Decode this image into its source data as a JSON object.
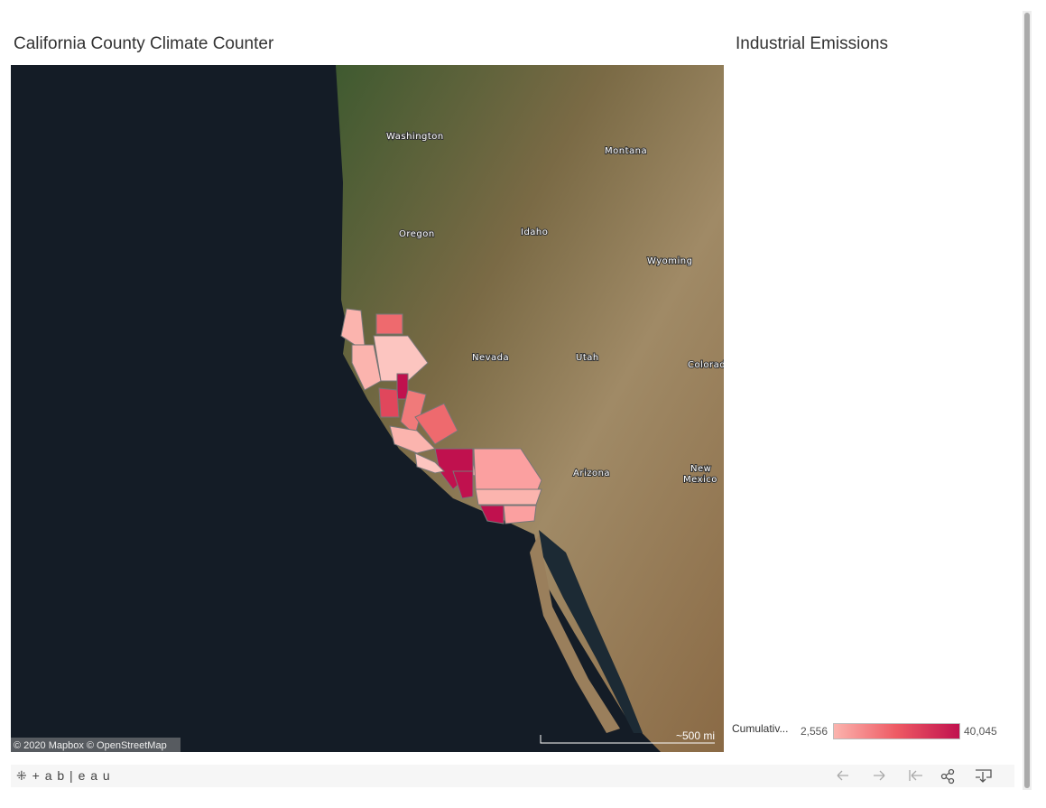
{
  "header": {
    "title": "California County Climate Counter",
    "side_title": "Industrial Emissions"
  },
  "map": {
    "labels": [
      "Washington",
      "Montana",
      "Oregon",
      "Idaho",
      "Wyoming",
      "Nevada",
      "Utah",
      "Colorad",
      "Arizona",
      "New",
      "Mexico"
    ],
    "attribution": "© 2020 Mapbox © OpenStreetMap",
    "scale": "~500 mi"
  },
  "legend": {
    "title": "Cumulativ...",
    "min": "2,556",
    "max": "40,045"
  },
  "footer": {
    "brand": "+ a b | e a u"
  }
}
